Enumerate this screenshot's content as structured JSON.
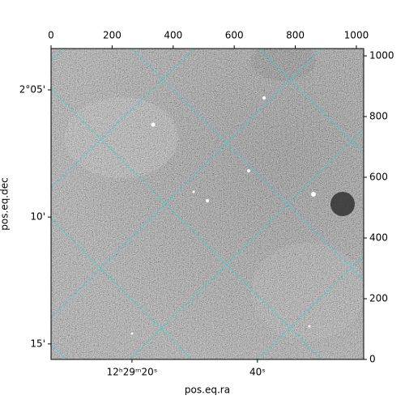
{
  "chart_data": {
    "type": "image",
    "xlabel": "pos.eq.ra",
    "ylabel": "pos.eq.dec",
    "xlim": [
      0,
      1024
    ],
    "ylim": [
      0,
      1024
    ],
    "xticks": [
      0,
      200,
      400,
      600,
      800,
      1000
    ],
    "yticks": [
      0,
      200,
      400,
      600,
      800,
      1000
    ],
    "ra_ticks": [
      {
        "value": 265,
        "label": "12ʰ29ᵐ20ˢ"
      },
      {
        "value": 676,
        "label": "40ˢ"
      }
    ],
    "dec_ticks": [
      {
        "value": 888,
        "label": "2°05'"
      },
      {
        "value": 469,
        "label": "10'"
      },
      {
        "value": 51,
        "label": "15'"
      }
    ]
  }
}
